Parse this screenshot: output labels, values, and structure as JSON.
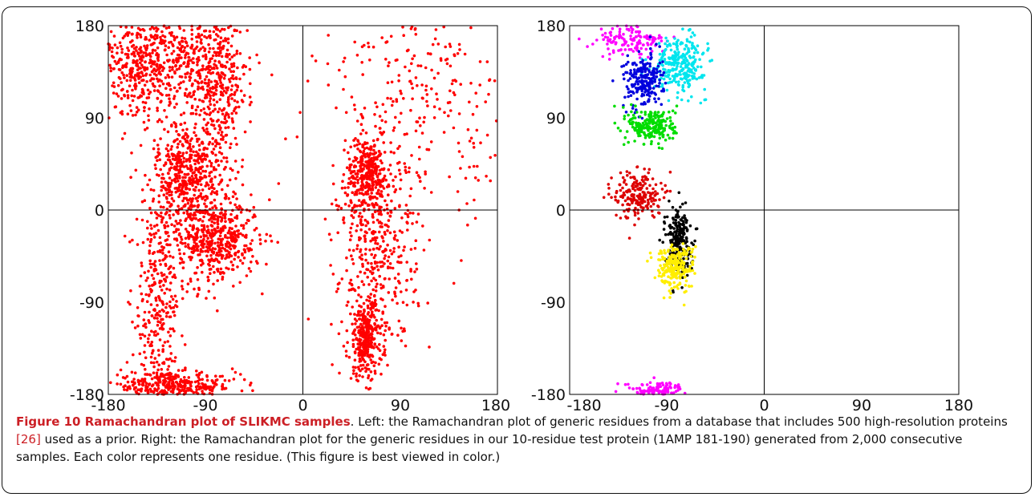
{
  "chart_data": [
    {
      "type": "scatter",
      "panel": "left",
      "xlabel": "",
      "ylabel": "",
      "xlim": [
        -180,
        180
      ],
      "ylim": [
        -180,
        180
      ],
      "x_ticks": [
        "-180",
        "-90",
        "0",
        "90",
        "180"
      ],
      "y_ticks": [
        "180",
        "90",
        "0",
        "-90",
        "-180"
      ],
      "grid": false,
      "reference_lines": [
        0
      ],
      "series": [
        {
          "color": "#ff0000",
          "points": 4000,
          "clusters": [
            {
              "x": -112,
              "y": 148,
              "sx": 30,
              "sy": 22
            },
            {
              "x": -150,
              "y": 140,
              "sx": 18,
              "sy": 28
            },
            {
              "x": -80,
              "y": 112,
              "sx": 14,
              "sy": 40
            },
            {
              "x": -95,
              "y": -5,
              "sx": 20,
              "sy": 35
            },
            {
              "x": -75,
              "y": -30,
              "sx": 18,
              "sy": 18
            },
            {
              "x": -110,
              "y": 40,
              "sx": 12,
              "sy": 25
            },
            {
              "x": 60,
              "y": 35,
              "sx": 10,
              "sy": 18
            },
            {
              "x": 58,
              "y": -125,
              "sx": 8,
              "sy": 20
            },
            {
              "x": -120,
              "y": -172,
              "sx": 30,
              "sy": 6
            },
            {
              "x": -135,
              "y": -100,
              "sx": 10,
              "sy": 60
            },
            {
              "x": 70,
              "y": -40,
              "sx": 18,
              "sy": 45
            },
            {
              "x": 110,
              "y": 100,
              "sx": 50,
              "sy": 60
            }
          ]
        }
      ]
    },
    {
      "type": "scatter",
      "panel": "right",
      "xlabel": "",
      "ylabel": "",
      "xlim": [
        -180,
        180
      ],
      "ylim": [
        -180,
        180
      ],
      "x_ticks": [
        "-180",
        "-90",
        "0",
        "90",
        "180"
      ],
      "y_ticks": [
        "180",
        "90",
        "0",
        "-90",
        "-180"
      ],
      "grid": false,
      "reference_lines": [
        0
      ],
      "series": [
        {
          "color": "#ff00ff",
          "points": 260,
          "clusters": [
            {
              "x": -122,
              "y": 165,
              "sx": 16,
              "sy": 8
            },
            {
              "x": -100,
              "y": -176,
              "sx": 14,
              "sy": 4
            }
          ]
        },
        {
          "color": "#00e5ee",
          "points": 280,
          "clusters": [
            {
              "x": -78,
              "y": 143,
              "sx": 12,
              "sy": 13
            }
          ]
        },
        {
          "color": "#0000dd",
          "points": 220,
          "clusters": [
            {
              "x": -112,
              "y": 126,
              "sx": 9,
              "sy": 13
            }
          ]
        },
        {
          "color": "#00dd00",
          "points": 230,
          "clusters": [
            {
              "x": -103,
              "y": 82,
              "sx": 11,
              "sy": 9
            }
          ]
        },
        {
          "color": "#dd0000",
          "points": 200,
          "clusters": [
            {
              "x": -117,
              "y": 15,
              "sx": 11,
              "sy": 12
            }
          ]
        },
        {
          "color": "#000000",
          "points": 250,
          "clusters": [
            {
              "x": -80,
              "y": -30,
              "sx": 6,
              "sy": 16
            }
          ]
        },
        {
          "color": "#ffee00",
          "points": 230,
          "clusters": [
            {
              "x": -83,
              "y": -55,
              "sx": 9,
              "sy": 11
            }
          ]
        }
      ]
    }
  ],
  "caption": {
    "title": "Figure 10 Ramachandran plot of SLIKMC samples",
    "body_1": ". Left: the Ramachandran plot of generic residues from a database that includes 500 high-resolution proteins ",
    "ref": "[26]",
    "body_2": " used as a prior. Right: the Ramachandran plot for the generic residues in our 10-residue test protein (1AMP 181-190) generated from 2,000 consecutive samples. Each color represents one residue. (This figure is best viewed in color.)"
  }
}
